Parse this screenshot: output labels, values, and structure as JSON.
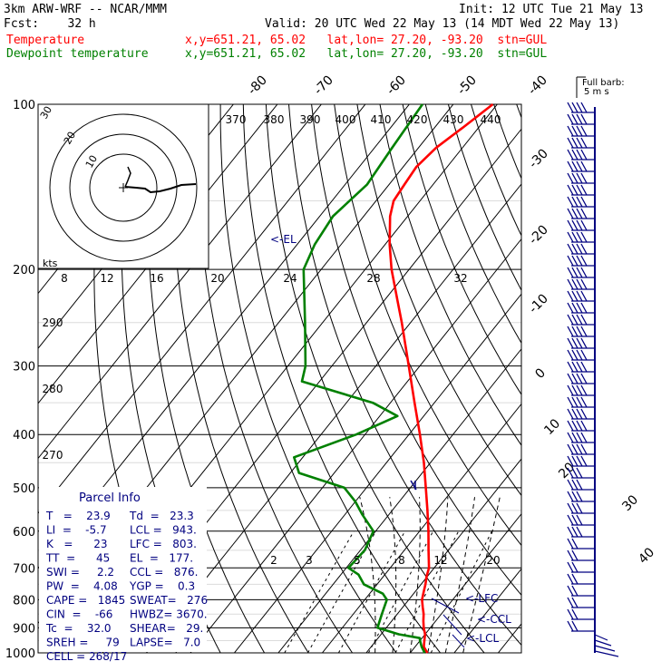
{
  "header": {
    "model": "3km ARW-WRF -- NCAR/MMM",
    "init": "Init: 12 UTC Tue 21 May 13",
    "fcst": "Fcst:    32 h",
    "valid": "Valid: 20 UTC Wed 22 May 13 (14 MDT Wed 22 May 13)",
    "temp_label": "Temperature",
    "temp_info": "x,y=651.21, 65.02   lat,lon= 27.20, -93.20  stn=GUL",
    "dew_label": "Dewpoint temperature",
    "dew_info": "x,y=651.21, 65.02   lat,lon= 27.20, -93.20  stn=GUL"
  },
  "colors": {
    "temperature": "#ff0000",
    "dewpoint": "#008000",
    "wind": "#000080",
    "text_blue": "#000080"
  },
  "chart_data": {
    "type": "line",
    "title": "",
    "xlabel": "",
    "ylabel": "",
    "pressure_levels": [
      "100",
      "200",
      "300",
      "400",
      "500",
      "600",
      "700",
      "800",
      "900",
      "1000"
    ],
    "isotherm_labels": [
      "-80",
      "-70",
      "-60",
      "-50",
      "-40",
      "-30",
      "-20",
      "-10",
      "0",
      "10",
      "20",
      "30",
      "40"
    ],
    "mixing_ratio_labels": [
      "2",
      "3",
      "5",
      "8",
      "12",
      "20"
    ],
    "theta_labels": [
      "370",
      "380",
      "390",
      "400",
      "410",
      "420",
      "430",
      "440"
    ],
    "theta_side_labels": [
      "290",
      "280",
      "270"
    ],
    "hodo_speed_labels": [
      "8",
      "12",
      "16",
      "20",
      "24",
      "28",
      "32"
    ],
    "hodo_ring_labels": [
      "10",
      "20",
      "30"
    ],
    "kts_label": "kts",
    "el_label": "<-EL",
    "lfc_label": "<-LFC",
    "ccl_label": "<-CCL",
    "lcl_label": "<-LCL",
    "barb_legend": [
      "Full barb:",
      "5 m s"
    ],
    "series": [
      {
        "name": "Temperature",
        "color": "#ff0000",
        "points": [
          [
            1000,
            23.9
          ],
          [
            975,
            22.0
          ],
          [
            950,
            21.0
          ],
          [
            925,
            20.0
          ],
          [
            900,
            18.5
          ],
          [
            875,
            17.2
          ],
          [
            850,
            16.0
          ],
          [
            825,
            14.5
          ],
          [
            800,
            13.0
          ],
          [
            775,
            12.0
          ],
          [
            750,
            11.0
          ],
          [
            725,
            9.8
          ],
          [
            700,
            8.8
          ],
          [
            650,
            5.5
          ],
          [
            600,
            2.0
          ],
          [
            550,
            -2.0
          ],
          [
            500,
            -6.5
          ],
          [
            450,
            -11.5
          ],
          [
            400,
            -17.5
          ],
          [
            350,
            -24.5
          ],
          [
            300,
            -32.5
          ],
          [
            250,
            -42.0
          ],
          [
            230,
            -46.5
          ],
          [
            200,
            -54.0
          ],
          [
            180,
            -59.0
          ],
          [
            160,
            -64.0
          ],
          [
            150,
            -66.0
          ],
          [
            140,
            -66.5
          ],
          [
            130,
            -67.0
          ],
          [
            120,
            -66.0
          ],
          [
            110,
            -63.5
          ],
          [
            100,
            -61.0
          ]
        ]
      },
      {
        "name": "Dewpoint temperature",
        "color": "#008000",
        "points": [
          [
            1000,
            23.3
          ],
          [
            975,
            21.5
          ],
          [
            950,
            20.0
          ],
          [
            940,
            19.5
          ],
          [
            925,
            14.0
          ],
          [
            900,
            8.0
          ],
          [
            850,
            6.5
          ],
          [
            800,
            5.0
          ],
          [
            780,
            3.0
          ],
          [
            750,
            -3.0
          ],
          [
            720,
            -6.0
          ],
          [
            700,
            -9.5
          ],
          [
            650,
            -9.0
          ],
          [
            600,
            -10.5
          ],
          [
            560,
            -16.0
          ],
          [
            530,
            -20.0
          ],
          [
            500,
            -25.0
          ],
          [
            470,
            -38.0
          ],
          [
            440,
            -42.0
          ],
          [
            400,
            -32.0
          ],
          [
            370,
            -26.0
          ],
          [
            350,
            -34.0
          ],
          [
            320,
            -54.0
          ],
          [
            300,
            -56.0
          ],
          [
            250,
            -64.0
          ],
          [
            200,
            -74.0
          ],
          [
            180,
            -76.0
          ],
          [
            160,
            -77.0
          ],
          [
            140,
            -75.0
          ],
          [
            120,
            -76.0
          ],
          [
            100,
            -77.0
          ]
        ]
      }
    ],
    "parcel_info": {
      "title": "Parcel Info",
      "rows": [
        [
          "T   =    23.9",
          "Td  =   23.3"
        ],
        [
          "LI  =    -5.7",
          "LCL =   943."
        ],
        [
          "K   =      23",
          "LFC =   803."
        ],
        [
          "TT  =      45",
          "EL  =   177."
        ],
        [
          "SWI =     2.2",
          "CCL =   876."
        ],
        [
          "PW  =    4.08",
          "YGP =    0.3"
        ],
        [
          "CAPE =   1845",
          "SWEAT=   276"
        ],
        [
          "CIN  =    -66",
          "HWBZ= 3670."
        ],
        [
          "Tc  =    32.0",
          "SHEAR=   29."
        ],
        [
          "SREH =     79",
          "LAPSE=   7.0"
        ],
        [
          "CELL = 268/17",
          ""
        ]
      ]
    }
  }
}
